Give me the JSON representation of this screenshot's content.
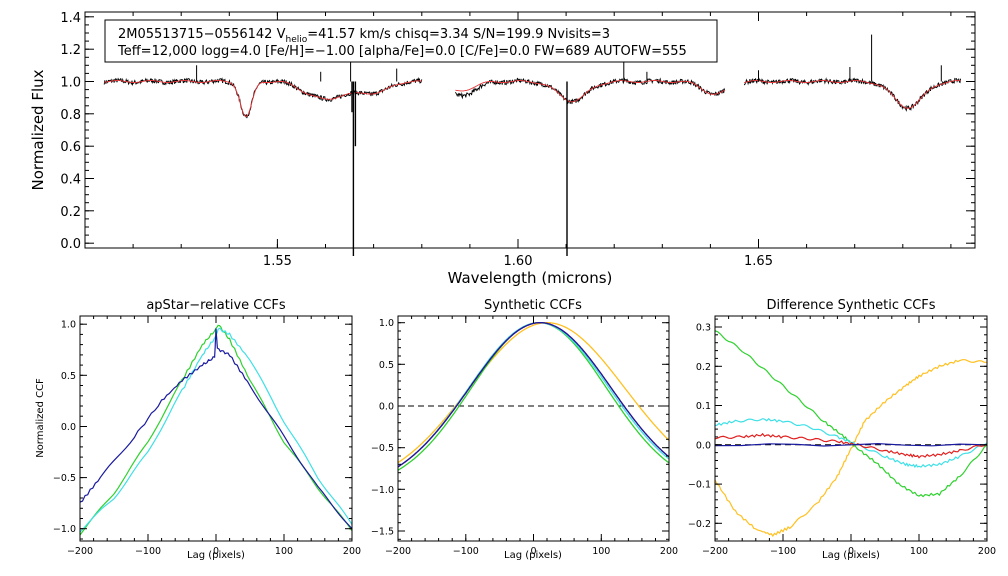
{
  "colors": {
    "observed": "#000000",
    "model": "#e8393b",
    "ccf_blue": "#1a1aa0",
    "ccf_cyan": "#3ee0e6",
    "ccf_green": "#2fd12f",
    "ccf_red": "#e02020",
    "ccf_orange": "#ffc020",
    "zero_line": "#000000"
  },
  "chart_data": [
    {
      "type": "line",
      "name": "spectrum",
      "xlabel": "Wavelength (microns)",
      "ylabel": "Normalized Flux",
      "xlim": [
        1.51,
        1.695
      ],
      "ylim": [
        -0.03,
        1.43
      ],
      "xticks": [
        1.55,
        1.6,
        1.65
      ],
      "xtick_labels": [
        "1.55",
        "1.60",
        "1.65"
      ],
      "yticks": [
        0.0,
        0.2,
        0.4,
        0.6,
        0.8,
        1.0,
        1.2,
        1.4
      ],
      "ytick_labels": [
        "0.0",
        "0.2",
        "0.4",
        "0.6",
        "0.8",
        "1.0",
        "1.2",
        "1.4"
      ],
      "info_box": {
        "line1_pre": "2M05513715−0556142  V",
        "line1_sub": "helio",
        "line1_post": "=41.57 km/s  chisq=3.34  S/N=199.9  Nvisits=3",
        "line2": "Teff=12,000 logg=4.0 [Fe/H]=−1.00 [alpha/Fe]=0.0 [C/Fe]=0.0 FW=689 AUTOFW=555"
      },
      "chips": [
        [
          1.514,
          1.58
        ],
        [
          1.587,
          1.643
        ],
        [
          1.647,
          1.692
        ]
      ],
      "series": [
        {
          "name": "observed",
          "color": "#000000"
        },
        {
          "name": "model",
          "color": "#e8393b"
        }
      ],
      "features": [
        {
          "center": 1.5435,
          "width": 0.0012,
          "depth": 0.22,
          "kind": "abs"
        },
        {
          "center": 1.5565,
          "width": 0.0025,
          "depth": 0.06,
          "kind": "abs"
        },
        {
          "center": 1.5602,
          "width": 0.0022,
          "depth": 0.07,
          "kind": "abs"
        },
        {
          "center": 1.565,
          "width": 0.003,
          "depth": 0.07,
          "kind": "abs"
        },
        {
          "center": 1.571,
          "width": 0.0024,
          "depth": 0.06,
          "kind": "abs"
        },
        {
          "center": 1.5875,
          "width": 0.003,
          "depth": 0.06,
          "kind": "abs"
        },
        {
          "center": 1.6113,
          "width": 0.003,
          "depth": 0.12,
          "kind": "abs"
        },
        {
          "center": 1.641,
          "width": 0.0025,
          "depth": 0.08,
          "kind": "abs"
        },
        {
          "center": 1.6811,
          "width": 0.003,
          "depth": 0.16,
          "kind": "abs"
        }
      ],
      "spikes": [
        {
          "x": 1.5332,
          "y": 1.1
        },
        {
          "x": 1.559,
          "y": 1.06
        },
        {
          "x": 1.5652,
          "y": 1.12
        },
        {
          "x": 1.5748,
          "y": 1.08
        },
        {
          "x": 1.622,
          "y": 1.15
        },
        {
          "x": 1.6268,
          "y": 1.06
        },
        {
          "x": 1.65,
          "y": 1.07
        },
        {
          "x": 1.669,
          "y": 1.09
        },
        {
          "x": 1.6735,
          "y": 1.29
        },
        {
          "x": 1.688,
          "y": 1.1
        }
      ],
      "drops": [
        {
          "x": 1.5655,
          "y": 0.81
        },
        {
          "x": 1.5658,
          "y": -0.08
        },
        {
          "x": 1.5662,
          "y": 0.6
        },
        {
          "x": 1.6102,
          "y": -0.08
        }
      ]
    },
    {
      "type": "line",
      "name": "apstar-relative-ccfs",
      "title": "apStar−relative CCFs",
      "xlabel": "Lag (pixels)",
      "ylabel": "Normalized CCF",
      "xlim": [
        -200,
        200
      ],
      "ylim": [
        -1.12,
        1.08
      ],
      "xticks": [
        -200,
        -100,
        0,
        100,
        200
      ],
      "xtick_labels": [
        "−200",
        "−100",
        "0",
        "100",
        "200"
      ],
      "yticks": [
        -1.0,
        -0.5,
        0.0,
        0.5,
        1.0
      ],
      "ytick_labels": [
        "−1.0",
        "−0.5",
        "0.0",
        "0.5",
        "1.0"
      ],
      "series": [
        {
          "name": "visit-green",
          "color": "#2fd12f",
          "x": [
            -200,
            -150,
            -100,
            -50,
            -20,
            0,
            3,
            20,
            50,
            100,
            150,
            200
          ],
          "y": [
            -1.05,
            -0.65,
            -0.15,
            0.45,
            0.8,
            0.95,
            1.0,
            0.85,
            0.45,
            -0.15,
            -0.6,
            -1.02
          ]
        },
        {
          "name": "visit-cyan",
          "color": "#3ee0e6",
          "x": [
            -200,
            -150,
            -100,
            -50,
            -20,
            0,
            3,
            20,
            50,
            100,
            150,
            200
          ],
          "y": [
            -1.02,
            -0.7,
            -0.25,
            0.35,
            0.7,
            0.88,
            0.96,
            0.9,
            0.65,
            0.05,
            -0.5,
            -0.96
          ]
        },
        {
          "name": "visit-blue",
          "color": "#1a1aa0",
          "x": [
            -200,
            -170,
            -120,
            -80,
            -50,
            -20,
            -2,
            0,
            2,
            20,
            50,
            100,
            150,
            200
          ],
          "y": [
            -0.75,
            -0.5,
            -0.1,
            0.25,
            0.45,
            0.6,
            0.68,
            0.97,
            0.76,
            0.7,
            0.4,
            -0.1,
            -0.6,
            -1.0
          ]
        }
      ]
    },
    {
      "type": "line",
      "name": "synthetic-ccfs",
      "title": "Synthetic CCFs",
      "xlabel": "Lag (pixels)",
      "xlim": [
        -200,
        200
      ],
      "ylim": [
        -1.62,
        1.08
      ],
      "xticks": [
        -200,
        -100,
        0,
        100,
        200
      ],
      "xtick_labels": [
        "−200",
        "−100",
        "0",
        "100",
        "200"
      ],
      "yticks": [
        -1.5,
        -1.0,
        -0.5,
        0.0,
        0.5,
        1.0
      ],
      "ytick_labels": [
        "−1.5",
        "−1.0",
        "−0.5",
        "0.0",
        "0.5",
        "1.0"
      ],
      "zero_line": true,
      "curves": [
        {
          "name": "synthetic-orange",
          "color": "#ffc020",
          "center": 20,
          "sigma": 115
        },
        {
          "name": "synthetic-green",
          "color": "#2fd12f",
          "center": 8,
          "sigma": 100
        },
        {
          "name": "synthetic-cyan",
          "color": "#3ee0e6",
          "center": 8,
          "sigma": 104
        },
        {
          "name": "synthetic-red",
          "color": "#e02020",
          "center": 10,
          "sigma": 105
        },
        {
          "name": "synthetic-navy",
          "color": "#1a1aa0",
          "center": 10,
          "sigma": 105
        }
      ]
    },
    {
      "type": "line",
      "name": "difference-synthetic-ccfs",
      "title": "Difference Synthetic CCFs",
      "xlabel": "Lag (pixels)",
      "xlim": [
        -200,
        200
      ],
      "ylim": [
        -0.245,
        0.328
      ],
      "xticks": [
        -200,
        -100,
        0,
        100,
        200
      ],
      "xtick_labels": [
        "−200",
        "−100",
        "0",
        "100",
        "200"
      ],
      "yticks": [
        -0.2,
        -0.1,
        0.0,
        0.1,
        0.2,
        0.3
      ],
      "ytick_labels": [
        "−0.2",
        "−0.1",
        "0.0",
        "0.1",
        "0.2",
        "0.3"
      ],
      "zero_line": true,
      "series": [
        {
          "name": "diff-orange",
          "color": "#ffc020",
          "x": [
            -200,
            -170,
            -140,
            -115,
            -90,
            -50,
            -20,
            0,
            20,
            50,
            80,
            100,
            130,
            160,
            200
          ],
          "y": [
            -0.09,
            -0.17,
            -0.215,
            -0.23,
            -0.21,
            -0.15,
            -0.08,
            -0.01,
            0.06,
            0.11,
            0.15,
            0.175,
            0.2,
            0.215,
            0.21
          ]
        },
        {
          "name": "diff-green",
          "color": "#2fd12f",
          "x": [
            -200,
            -160,
            -120,
            -80,
            -40,
            -10,
            10,
            40,
            70,
            100,
            130,
            160,
            200
          ],
          "y": [
            0.29,
            0.24,
            0.18,
            0.12,
            0.06,
            0.02,
            -0.01,
            -0.05,
            -0.1,
            -0.13,
            -0.125,
            -0.08,
            0.0
          ]
        },
        {
          "name": "diff-cyan",
          "color": "#3ee0e6",
          "x": [
            -200,
            -170,
            -130,
            -100,
            -60,
            -20,
            10,
            50,
            80,
            100,
            130,
            160,
            200
          ],
          "y": [
            0.05,
            0.06,
            0.065,
            0.06,
            0.045,
            0.02,
            0.0,
            -0.03,
            -0.05,
            -0.055,
            -0.05,
            -0.03,
            0.005
          ]
        },
        {
          "name": "diff-red",
          "color": "#e02020",
          "x": [
            -200,
            -160,
            -130,
            -100,
            -60,
            -20,
            10,
            50,
            80,
            100,
            130,
            160,
            200
          ],
          "y": [
            0.018,
            0.02,
            0.025,
            0.02,
            0.015,
            0.008,
            0.0,
            -0.015,
            -0.025,
            -0.03,
            -0.025,
            -0.015,
            0.002
          ]
        },
        {
          "name": "diff-navy",
          "color": "#1a1aa0",
          "x": [
            -200,
            200
          ],
          "y": [
            0.0,
            0.0
          ]
        }
      ]
    }
  ]
}
